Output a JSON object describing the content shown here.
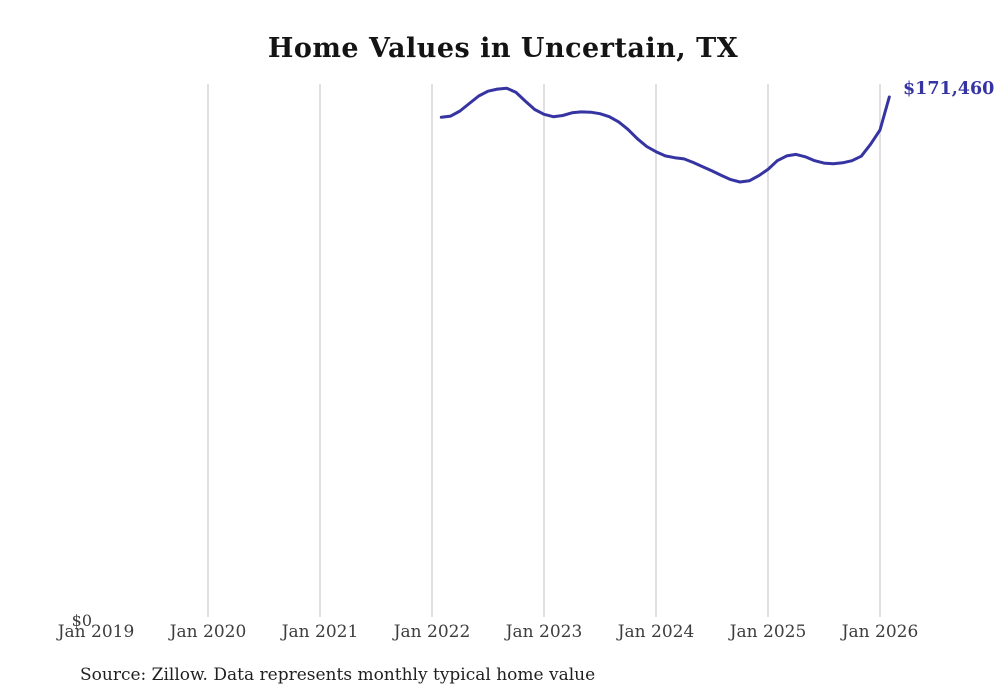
{
  "title": "Home Values in Uncertain, TX",
  "source_note": "Source: Zillow. Data represents monthly typical home value",
  "annotations": {
    "end_value_label": "$171,460",
    "y_axis_zero_label": "$0"
  },
  "colors": {
    "line": "#3534a2",
    "end_label": "#3534a2",
    "grid": "#d9d9d9",
    "tick_text": "#3d3d3d",
    "title_text": "#141414",
    "source_text": "#1f1f1f",
    "background": "#ffffff"
  },
  "chart_data": {
    "type": "line",
    "title": "Home Values in Uncertain, TX",
    "xlabel": "",
    "ylabel": "",
    "ylim": [
      0,
      175800
    ],
    "grid": "vertical-only",
    "legend": "none",
    "x_tick_labels": [
      "Jan 2019",
      "Jan 2020",
      "Jan 2021",
      "Jan 2022",
      "Jan 2023",
      "Jan 2024",
      "Jan 2025",
      "Jan 2026"
    ],
    "y_tick_labels": [
      "$0"
    ],
    "end_annotation": "$171,460",
    "series": [
      {
        "name": "Monthly typical home value",
        "x": [
          "2022-02",
          "2022-03",
          "2022-04",
          "2022-05",
          "2022-06",
          "2022-07",
          "2022-08",
          "2022-09",
          "2022-10",
          "2022-11",
          "2022-12",
          "2023-01",
          "2023-02",
          "2023-03",
          "2023-04",
          "2023-05",
          "2023-06",
          "2023-07",
          "2023-08",
          "2023-09",
          "2023-10",
          "2023-11",
          "2023-12",
          "2024-01",
          "2024-02",
          "2024-03",
          "2024-04",
          "2024-05",
          "2024-06",
          "2024-07",
          "2024-08",
          "2024-09",
          "2024-10",
          "2024-11",
          "2024-12",
          "2025-01",
          "2025-02",
          "2025-03",
          "2025-04",
          "2025-05",
          "2025-06",
          "2025-07",
          "2025-08",
          "2025-09",
          "2025-10",
          "2025-11",
          "2025-12",
          "2026-01",
          "2026-02"
        ],
        "values": [
          164700,
          165100,
          166800,
          169300,
          171800,
          173400,
          174100,
          174400,
          173000,
          170100,
          167300,
          165700,
          164900,
          165300,
          166200,
          166500,
          166400,
          165900,
          164900,
          163200,
          160700,
          157600,
          155000,
          153300,
          151900,
          151300,
          150900,
          149700,
          148300,
          146900,
          145400,
          144000,
          143200,
          143600,
          145300,
          147400,
          150300,
          151900,
          152400,
          151600,
          150300,
          149500,
          149300,
          149600,
          150300,
          151800,
          155800,
          160500,
          171460
        ]
      }
    ]
  }
}
